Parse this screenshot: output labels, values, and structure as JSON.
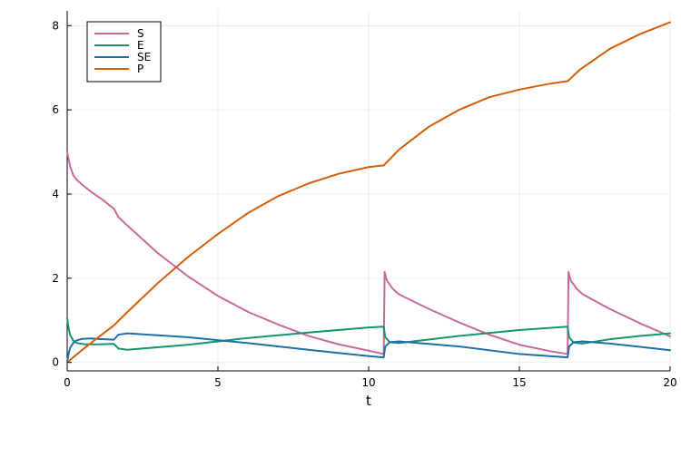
{
  "chart_data": {
    "type": "line",
    "title": "",
    "xlabel": "t",
    "ylabel": "",
    "xlim": [
      0,
      20
    ],
    "ylim": [
      -0.2,
      8.35
    ],
    "xticks": [
      0,
      5,
      10,
      15,
      20
    ],
    "xtick_labels": [
      "0",
      "5",
      "10",
      "15",
      "20"
    ],
    "yticks": [
      0,
      2,
      4,
      6,
      8
    ],
    "ytick_labels": [
      "0",
      "2",
      "4",
      "6",
      "8"
    ],
    "grid": true,
    "legend": {
      "position": "top-left",
      "entries": [
        "S",
        "E",
        "SE",
        "P"
      ]
    },
    "series": [
      {
        "name": "S",
        "color": "#c8699e",
        "x": [
          0,
          0.05,
          0.1,
          0.2,
          0.3,
          0.5,
          0.8,
          1.2,
          1.55,
          1.7,
          2.0,
          3.0,
          4.0,
          5.0,
          6.0,
          7.0,
          8.0,
          9.0,
          10.0,
          10.5,
          10.53,
          10.6,
          10.8,
          11.0,
          12.0,
          13.0,
          14.0,
          15.0,
          16.0,
          16.6,
          16.63,
          16.7,
          16.9,
          17.1,
          18.0,
          19.0,
          20.0
        ],
        "y": [
          5.0,
          4.82,
          4.65,
          4.45,
          4.35,
          4.22,
          4.05,
          3.85,
          3.65,
          3.45,
          3.25,
          2.6,
          2.05,
          1.58,
          1.2,
          0.9,
          0.63,
          0.43,
          0.28,
          0.2,
          2.15,
          1.95,
          1.75,
          1.62,
          1.27,
          0.95,
          0.66,
          0.42,
          0.27,
          0.2,
          2.15,
          1.95,
          1.75,
          1.62,
          1.27,
          0.93,
          0.62
        ]
      },
      {
        "name": "E",
        "color": "#13966f",
        "x": [
          0,
          0.05,
          0.1,
          0.2,
          0.3,
          0.4,
          0.6,
          1.0,
          1.55,
          1.7,
          2.0,
          4.0,
          6.0,
          8.0,
          10.0,
          10.5,
          10.55,
          10.7,
          11.0,
          13.0,
          15.0,
          16.6,
          16.65,
          16.8,
          17.1,
          18.0,
          19.0,
          20.0
        ],
        "y": [
          1.05,
          0.8,
          0.65,
          0.52,
          0.47,
          0.45,
          0.43,
          0.43,
          0.44,
          0.33,
          0.3,
          0.42,
          0.58,
          0.71,
          0.83,
          0.85,
          0.6,
          0.48,
          0.46,
          0.63,
          0.77,
          0.85,
          0.6,
          0.47,
          0.45,
          0.55,
          0.63,
          0.69
        ]
      },
      {
        "name": "SE",
        "color": "#1f6ea6",
        "x": [
          0,
          0.05,
          0.1,
          0.2,
          0.3,
          0.5,
          0.8,
          1.0,
          1.55,
          1.7,
          2.0,
          4.0,
          6.0,
          8.0,
          10.0,
          10.5,
          10.55,
          10.7,
          11.0,
          13.0,
          15.0,
          16.6,
          16.65,
          16.8,
          17.1,
          18.0,
          19.0,
          20.0
        ],
        "y": [
          0.0,
          0.22,
          0.35,
          0.46,
          0.52,
          0.56,
          0.57,
          0.56,
          0.54,
          0.66,
          0.69,
          0.6,
          0.46,
          0.3,
          0.15,
          0.12,
          0.38,
          0.48,
          0.5,
          0.38,
          0.2,
          0.12,
          0.38,
          0.48,
          0.5,
          0.45,
          0.37,
          0.29
        ]
      },
      {
        "name": "P",
        "color": "#d35f0b",
        "x": [
          0,
          0.5,
          1.0,
          1.55,
          2.0,
          3.0,
          4.0,
          5.0,
          6.0,
          7.0,
          8.0,
          9.0,
          10.0,
          10.5,
          11.0,
          12.0,
          13.0,
          14.0,
          15.0,
          16.0,
          16.6,
          17.0,
          18.0,
          19.0,
          20.0
        ],
        "y": [
          0.0,
          0.3,
          0.58,
          0.88,
          1.2,
          1.88,
          2.5,
          3.05,
          3.55,
          3.95,
          4.25,
          4.48,
          4.64,
          4.68,
          5.05,
          5.6,
          6.0,
          6.3,
          6.48,
          6.62,
          6.68,
          6.95,
          7.45,
          7.8,
          8.08
        ]
      }
    ]
  }
}
